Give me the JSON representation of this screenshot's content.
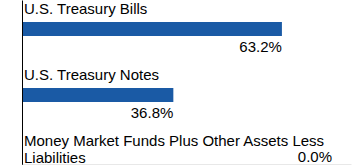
{
  "chart_data": {
    "type": "bar",
    "orientation": "horizontal",
    "categories": [
      "U.S. Treasury Bills",
      "U.S. Treasury Notes",
      "Money Market Funds Plus Other Assets Less Liabilities"
    ],
    "values": [
      63.2,
      36.8,
      0.0
    ],
    "value_labels": [
      "63.2%",
      "36.8%",
      "0.0%"
    ],
    "data_labels": true,
    "color": "#1a5aa5",
    "xlim": [
      0,
      80
    ],
    "tick_labels": false,
    "grid": false
  }
}
